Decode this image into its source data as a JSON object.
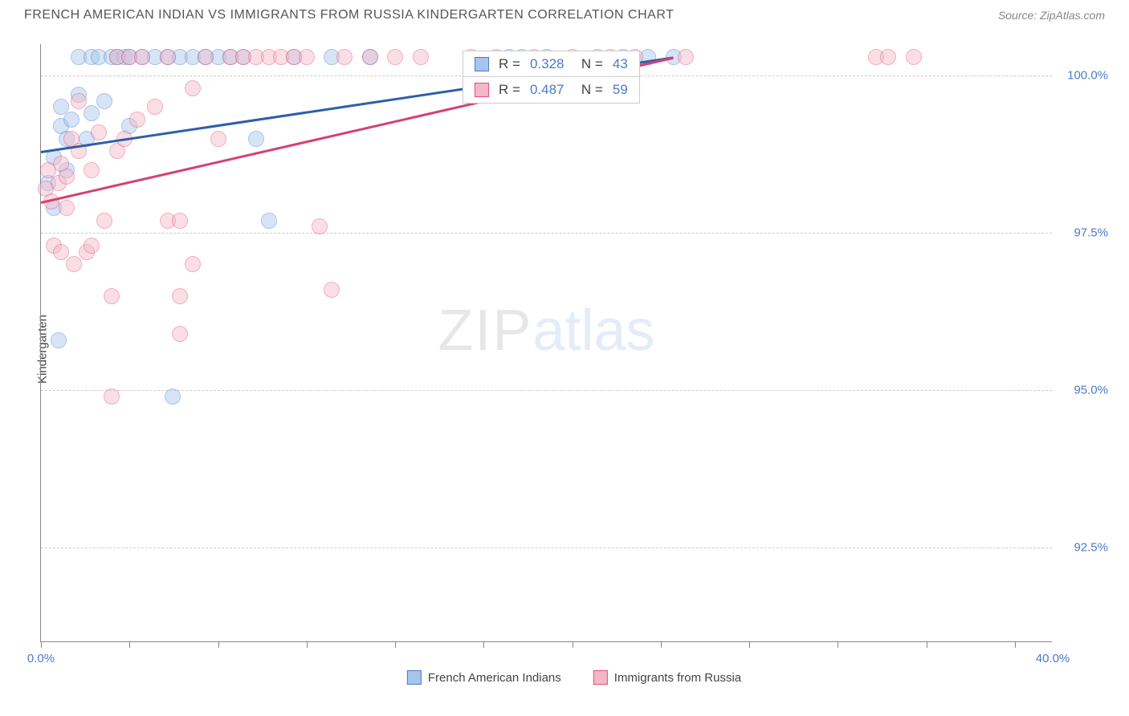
{
  "header": {
    "title": "FRENCH AMERICAN INDIAN VS IMMIGRANTS FROM RUSSIA KINDERGARTEN CORRELATION CHART",
    "source": "Source: ZipAtlas.com"
  },
  "chart": {
    "type": "scatter",
    "ylabel": "Kindergarten",
    "xlim": [
      0,
      40
    ],
    "ylim": [
      91,
      100.5
    ],
    "xtick_positions": [
      0,
      3.5,
      7,
      10.5,
      14,
      17.5,
      21,
      24.5,
      28,
      31.5,
      35,
      38.5
    ],
    "xtick_labels": {
      "0": "0.0%",
      "40": "40.0%"
    },
    "ytick_positions": [
      92.5,
      95.0,
      97.5,
      100.0
    ],
    "ytick_labels": [
      "92.5%",
      "95.0%",
      "97.5%",
      "100.0%"
    ],
    "grid_color": "#cccccc",
    "background": "#ffffff",
    "marker_radius": 10,
    "marker_opacity": 0.45,
    "series": [
      {
        "name": "French American Indians",
        "color_fill": "#a6c5ec",
        "color_stroke": "#4a7bc8",
        "trend_color": "#2e5fa8",
        "stats": {
          "R": "0.328",
          "N": "43"
        },
        "trend": {
          "x1": 0,
          "y1": 98.8,
          "x2": 25,
          "y2": 100.3
        },
        "points": [
          [
            0.3,
            98.3
          ],
          [
            0.5,
            98.7
          ],
          [
            0.5,
            97.9
          ],
          [
            0.8,
            99.2
          ],
          [
            0.8,
            99.5
          ],
          [
            1.0,
            98.5
          ],
          [
            1.0,
            99.0
          ],
          [
            1.2,
            99.3
          ],
          [
            1.5,
            99.7
          ],
          [
            1.5,
            100.3
          ],
          [
            1.8,
            99.0
          ],
          [
            2.0,
            100.3
          ],
          [
            2.0,
            99.4
          ],
          [
            2.3,
            100.3
          ],
          [
            2.5,
            99.6
          ],
          [
            2.8,
            100.3
          ],
          [
            3.0,
            100.3
          ],
          [
            3.3,
            100.3
          ],
          [
            3.5,
            99.2
          ],
          [
            3.5,
            100.3
          ],
          [
            4.0,
            100.3
          ],
          [
            4.5,
            100.3
          ],
          [
            5.0,
            100.3
          ],
          [
            5.5,
            100.3
          ],
          [
            6.0,
            100.3
          ],
          [
            6.5,
            100.3
          ],
          [
            7.0,
            100.3
          ],
          [
            7.5,
            100.3
          ],
          [
            8.0,
            100.3
          ],
          [
            8.5,
            99.0
          ],
          [
            9.0,
            97.7
          ],
          [
            10.0,
            100.3
          ],
          [
            11.5,
            100.3
          ],
          [
            13.0,
            100.3
          ],
          [
            18.5,
            100.3
          ],
          [
            19.0,
            100.3
          ],
          [
            20.0,
            100.3
          ],
          [
            22.0,
            100.3
          ],
          [
            23.0,
            100.3
          ],
          [
            24.0,
            100.3
          ],
          [
            25.0,
            100.3
          ],
          [
            0.7,
            95.8
          ],
          [
            5.2,
            94.9
          ]
        ]
      },
      {
        "name": "Immigrants from Russia",
        "color_fill": "#f3b8c8",
        "color_stroke": "#e04f7a",
        "trend_color": "#d6416f",
        "stats": {
          "R": "0.487",
          "N": "59"
        },
        "trend": {
          "x1": 0,
          "y1": 98.0,
          "x2": 25,
          "y2": 100.3
        },
        "points": [
          [
            0.2,
            98.2
          ],
          [
            0.3,
            98.5
          ],
          [
            0.4,
            98.0
          ],
          [
            0.5,
            97.3
          ],
          [
            0.7,
            98.3
          ],
          [
            0.8,
            98.6
          ],
          [
            1.0,
            97.9
          ],
          [
            1.0,
            98.4
          ],
          [
            1.2,
            99.0
          ],
          [
            1.3,
            97.0
          ],
          [
            1.5,
            98.8
          ],
          [
            1.5,
            99.6
          ],
          [
            1.8,
            97.2
          ],
          [
            2.0,
            98.5
          ],
          [
            2.0,
            97.3
          ],
          [
            2.3,
            99.1
          ],
          [
            2.5,
            97.7
          ],
          [
            2.8,
            96.5
          ],
          [
            3.0,
            98.8
          ],
          [
            3.0,
            100.3
          ],
          [
            3.3,
            99.0
          ],
          [
            3.5,
            100.3
          ],
          [
            3.8,
            99.3
          ],
          [
            4.0,
            100.3
          ],
          [
            4.5,
            99.5
          ],
          [
            5.0,
            97.7
          ],
          [
            5.0,
            100.3
          ],
          [
            5.5,
            97.7
          ],
          [
            5.5,
            96.5
          ],
          [
            6.0,
            99.8
          ],
          [
            6.0,
            97.0
          ],
          [
            6.5,
            100.3
          ],
          [
            7.0,
            99.0
          ],
          [
            7.5,
            100.3
          ],
          [
            8.0,
            100.3
          ],
          [
            8.5,
            100.3
          ],
          [
            9.0,
            100.3
          ],
          [
            9.5,
            100.3
          ],
          [
            10.0,
            100.3
          ],
          [
            10.5,
            100.3
          ],
          [
            11.0,
            97.6
          ],
          [
            11.5,
            96.6
          ],
          [
            12.0,
            100.3
          ],
          [
            13.0,
            100.3
          ],
          [
            14.0,
            100.3
          ],
          [
            15.0,
            100.3
          ],
          [
            17.0,
            100.3
          ],
          [
            18.0,
            100.3
          ],
          [
            19.5,
            100.3
          ],
          [
            21.0,
            100.3
          ],
          [
            22.5,
            100.3
          ],
          [
            23.5,
            100.3
          ],
          [
            25.5,
            100.3
          ],
          [
            33.0,
            100.3
          ],
          [
            33.5,
            100.3
          ],
          [
            34.5,
            100.3
          ],
          [
            2.8,
            94.9
          ],
          [
            5.5,
            95.9
          ],
          [
            0.8,
            97.2
          ]
        ]
      }
    ],
    "legend": [
      {
        "label": "French American Indians",
        "fill": "#a6c5ec",
        "stroke": "#4a7bc8"
      },
      {
        "label": "Immigrants from Russia",
        "fill": "#f3b8c8",
        "stroke": "#e04f7a"
      }
    ],
    "watermark": {
      "part1": "ZIP",
      "part2": "atlas"
    }
  }
}
